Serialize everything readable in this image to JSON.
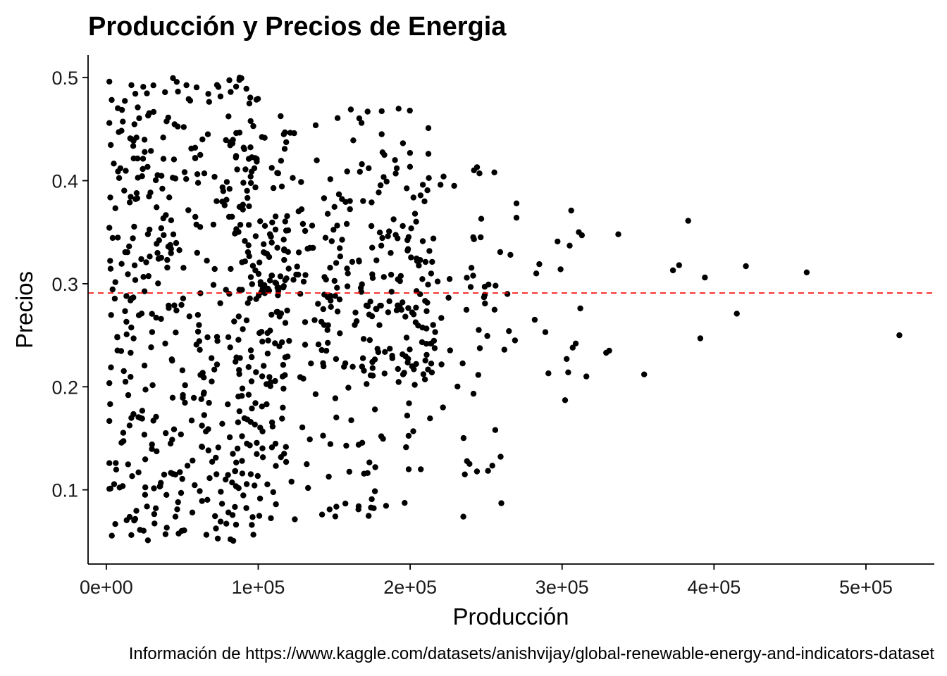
{
  "chart_data": {
    "type": "scatter",
    "title": "Producción y Precios de Energia",
    "xlabel": "Producción",
    "ylabel": "Precios",
    "caption": "Información de https://www.kaggle.com/datasets/anishvijay/global-renewable-energy-and-indicators-dataset",
    "xlim": [
      -12000,
      545000
    ],
    "ylim": [
      0.028,
      0.522
    ],
    "x_ticks": [
      0,
      100000,
      200000,
      300000,
      400000,
      500000
    ],
    "x_tick_labels": [
      "0e+00",
      "1e+05",
      "2e+05",
      "3e+05",
      "4e+05",
      "5e+05"
    ],
    "y_ticks": [
      0.1,
      0.2,
      0.3,
      0.4,
      0.5
    ],
    "y_tick_labels": [
      "0.1",
      "0.2",
      "0.3",
      "0.4",
      "0.5"
    ],
    "grid": false,
    "reference_line": {
      "axis": "y",
      "value": 0.291,
      "style": "dashed",
      "color": "#ff0000"
    },
    "point_color": "#000000",
    "outlier_points": [
      [
        522000,
        0.25
      ],
      [
        461000,
        0.311
      ],
      [
        421000,
        0.317
      ],
      [
        415000,
        0.271
      ],
      [
        394000,
        0.306
      ],
      [
        391000,
        0.247
      ],
      [
        383000,
        0.361
      ],
      [
        377000,
        0.318
      ],
      [
        373000,
        0.313
      ],
      [
        354000,
        0.212
      ],
      [
        337000,
        0.348
      ],
      [
        331000,
        0.235
      ],
      [
        329000,
        0.233
      ],
      [
        316000,
        0.21
      ],
      [
        313000,
        0.347
      ],
      [
        312000,
        0.276
      ],
      [
        311000,
        0.35
      ],
      [
        306000,
        0.371
      ],
      [
        305000,
        0.337
      ],
      [
        304000,
        0.214
      ],
      [
        303000,
        0.227
      ],
      [
        309000,
        0.242
      ],
      [
        307000,
        0.238
      ],
      [
        302000,
        0.187
      ],
      [
        299000,
        0.314
      ],
      [
        297000,
        0.341
      ],
      [
        291000,
        0.213
      ],
      [
        289000,
        0.253
      ],
      [
        285000,
        0.319
      ],
      [
        283000,
        0.31
      ],
      [
        282000,
        0.265
      ],
      [
        270000,
        0.378
      ],
      [
        270000,
        0.364
      ],
      [
        269000,
        0.245
      ],
      [
        266000,
        0.328
      ],
      [
        265000,
        0.254
      ],
      [
        264000,
        0.29
      ],
      [
        262000,
        0.236
      ],
      [
        260000,
        0.087
      ],
      [
        256000,
        0.158
      ],
      [
        244000,
        0.413
      ],
      [
        242000,
        0.41
      ],
      [
        236000,
        0.115
      ],
      [
        235000,
        0.074
      ],
      [
        229000,
        0.395
      ],
      [
        222000,
        0.404
      ],
      [
        220000,
        0.396
      ],
      [
        212000,
        0.451
      ],
      [
        212000,
        0.426
      ],
      [
        207000,
        0.12
      ],
      [
        199000,
        0.12
      ],
      [
        190000,
        0.42
      ],
      [
        183000,
        0.425
      ],
      [
        181000,
        0.337
      ],
      [
        172000,
        0.467
      ],
      [
        168000,
        0.456
      ],
      [
        147000,
        0.081
      ],
      [
        142000,
        0.076
      ]
    ],
    "cluster_region": {
      "x_range": [
        0,
        260000
      ],
      "y_range": [
        0.05,
        0.5
      ],
      "points": 900
    }
  }
}
